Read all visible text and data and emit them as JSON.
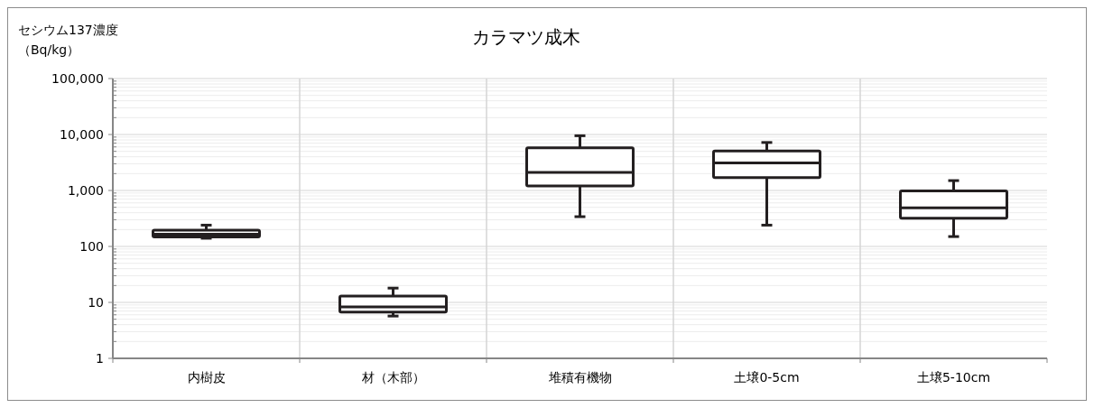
{
  "chart_data": {
    "type": "box",
    "title": "カラマツ成木",
    "ylabel": "セシウム137濃度（Bq/kg）",
    "categories": [
      "内樹皮",
      "材（木部）",
      "堆積有機物",
      "土壌0-5cm",
      "土壌5-10cm"
    ],
    "boxes": [
      {
        "low": 140,
        "q1": 148,
        "median": 165,
        "q3": 195,
        "high": 240
      },
      {
        "low": 5.7,
        "q1": 6.7,
        "median": 8.3,
        "q3": 13,
        "high": 18
      },
      {
        "low": 340,
        "q1": 1200,
        "median": 2100,
        "q3": 5800,
        "high": 9500
      },
      {
        "low": 240,
        "q1": 1700,
        "median": 3100,
        "q3": 5100,
        "high": 7200
      },
      {
        "low": 150,
        "q1": 320,
        "median": 490,
        "q3": 980,
        "high": 1500
      }
    ],
    "log": "y",
    "ylim": [
      1,
      100000
    ],
    "yticks": [
      1,
      10,
      100,
      {
        "value": 1000,
        "label": "1,000"
      },
      {
        "value": 10000,
        "label": "10,000"
      },
      {
        "value": 100000,
        "label": "100,000"
      }
    ],
    "grid": true,
    "color": "#231f20"
  }
}
